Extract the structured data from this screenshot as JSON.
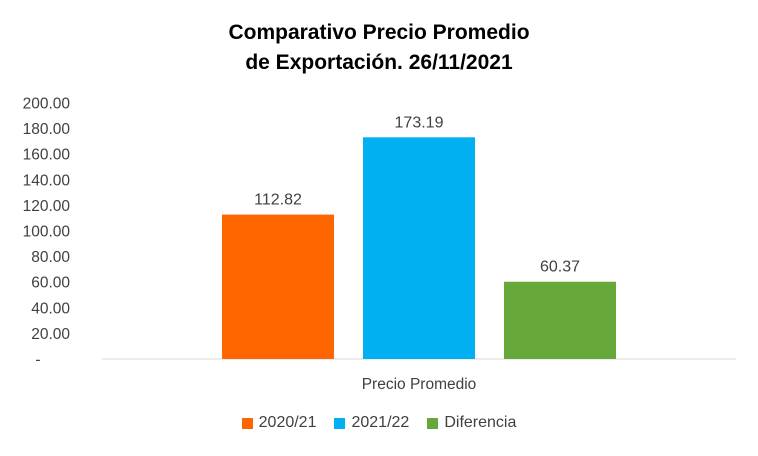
{
  "chart_data": {
    "type": "bar",
    "title_line1": "Comparativo Precio Promedio",
    "title_line2": "de Exportación. 26/11/2021",
    "categories": [
      "Precio Promedio"
    ],
    "series": [
      {
        "name": "2020/21",
        "values": [
          112.82
        ],
        "label": "112.82",
        "color": "#FF6600"
      },
      {
        "name": "2021/22",
        "values": [
          173.19
        ],
        "label": "173.19",
        "color": "#00B0F0"
      },
      {
        "name": "Diferencia",
        "values": [
          60.37
        ],
        "label": "60.37",
        "color": "#66A83A"
      }
    ],
    "ylim": [
      0,
      200
    ],
    "yticks": [
      "-",
      "20.00",
      "40.00",
      "60.00",
      "80.00",
      "100.00",
      "120.00",
      "140.00",
      "160.00",
      "180.00",
      "200.00"
    ],
    "grid": false,
    "legend": "bottom"
  }
}
